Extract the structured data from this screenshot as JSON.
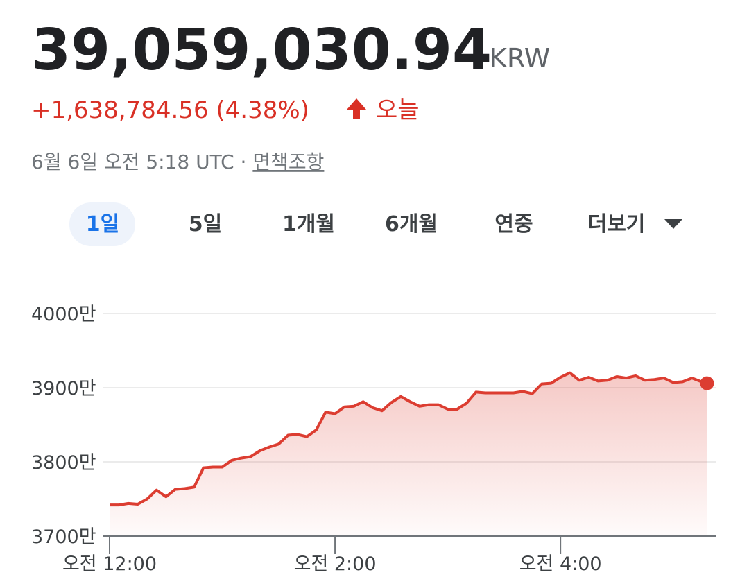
{
  "header": {
    "price": "39,059,030.94",
    "currency": "KRW",
    "change": "+1,638,784.56 (4.38%)",
    "period": "오늘",
    "timestamp": "6월 6일 오전 5:18 UTC · ",
    "disclaimer": "면책조항"
  },
  "tabs": [
    "1일",
    "5일",
    "1개월",
    "6개월",
    "연중",
    "더보기"
  ],
  "chart_data": {
    "type": "line",
    "x": [
      0,
      5,
      10,
      15,
      20,
      25,
      30,
      35,
      40,
      45,
      50,
      55,
      60,
      65,
      70,
      75,
      80,
      85,
      90,
      95,
      100,
      105,
      110,
      115,
      120,
      125,
      130,
      135,
      140,
      145,
      150,
      155,
      160,
      165,
      170,
      175,
      180,
      185,
      190,
      195,
      200,
      205,
      210,
      215,
      220,
      225,
      230,
      235,
      240,
      245,
      250,
      255,
      260,
      265,
      270,
      275,
      280,
      285,
      290,
      295,
      300,
      305,
      310,
      315,
      318
    ],
    "values": [
      37420000,
      37420000,
      37440000,
      37430000,
      37500000,
      37620000,
      37530000,
      37630000,
      37640000,
      37660000,
      37920000,
      37930000,
      37930000,
      38020000,
      38050000,
      38070000,
      38150000,
      38200000,
      38240000,
      38360000,
      38370000,
      38340000,
      38430000,
      38670000,
      38650000,
      38740000,
      38750000,
      38810000,
      38730000,
      38690000,
      38800000,
      38880000,
      38810000,
      38750000,
      38770000,
      38770000,
      38710000,
      38710000,
      38790000,
      38940000,
      38930000,
      38930000,
      38930000,
      38930000,
      38950000,
      38920000,
      39050000,
      39060000,
      39140000,
      39200000,
      39100000,
      39140000,
      39090000,
      39100000,
      39150000,
      39130000,
      39160000,
      39100000,
      39110000,
      39130000,
      39070000,
      39080000,
      39130000,
      39080000,
      39059031
    ],
    "color": "#dc3d31",
    "xlim": [
      0,
      323
    ],
    "xticks": [
      {
        "value": 0,
        "label": "오전 12:00"
      },
      {
        "value": 120,
        "label": "오전 2:00"
      },
      {
        "value": 240,
        "label": "오전 4:00"
      }
    ],
    "ylim": [
      37000000,
      40000000
    ],
    "yticks": [
      {
        "value": 37000000,
        "label": "3700만"
      },
      {
        "value": 38000000,
        "label": "3800만"
      },
      {
        "value": 39000000,
        "label": "3900만"
      },
      {
        "value": 40000000,
        "label": "4000만"
      }
    ],
    "grid": true
  }
}
